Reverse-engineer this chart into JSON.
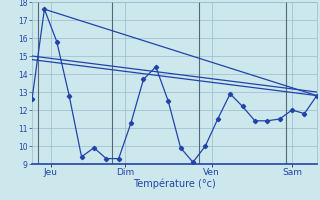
{
  "background_color": "#cce8ed",
  "grid_color": "#99bbcc",
  "line_color": "#2244aa",
  "vline_color": "#556677",
  "bottom_line_color": "#2244aa",
  "xlabel": "Température (°c)",
  "ylim": [
    9,
    18
  ],
  "xlim": [
    0,
    23
  ],
  "yticks": [
    9,
    10,
    11,
    12,
    13,
    14,
    15,
    16,
    17,
    18
  ],
  "x_ticks_pos": [
    1.5,
    7.5,
    14.5,
    21.0
  ],
  "x_ticks_labels": [
    "Jeu",
    "Dim",
    "Ven",
    "Sam"
  ],
  "vlines_x": [
    0.5,
    6.5,
    13.5,
    20.5
  ],
  "jagged_x": [
    0,
    1,
    2,
    3,
    4,
    5,
    6,
    7,
    8,
    9,
    10,
    11,
    12,
    13,
    14,
    15,
    16,
    17,
    18,
    19,
    20,
    21,
    22,
    23
  ],
  "jagged_y": [
    12.6,
    17.6,
    15.8,
    12.8,
    9.4,
    9.9,
    9.3,
    9.3,
    11.3,
    13.7,
    14.4,
    12.5,
    9.9,
    9.1,
    10.0,
    11.5,
    12.9,
    12.2,
    11.4,
    11.4,
    11.5,
    12.0,
    11.8,
    12.8
  ],
  "upper_line_x": [
    1,
    23
  ],
  "upper_line_y": [
    17.6,
    12.8
  ],
  "mid1_line_x": [
    0,
    23
  ],
  "mid1_line_y": [
    15.0,
    13.0
  ],
  "mid2_line_x": [
    0,
    23
  ],
  "mid2_line_y": [
    14.8,
    12.8
  ]
}
